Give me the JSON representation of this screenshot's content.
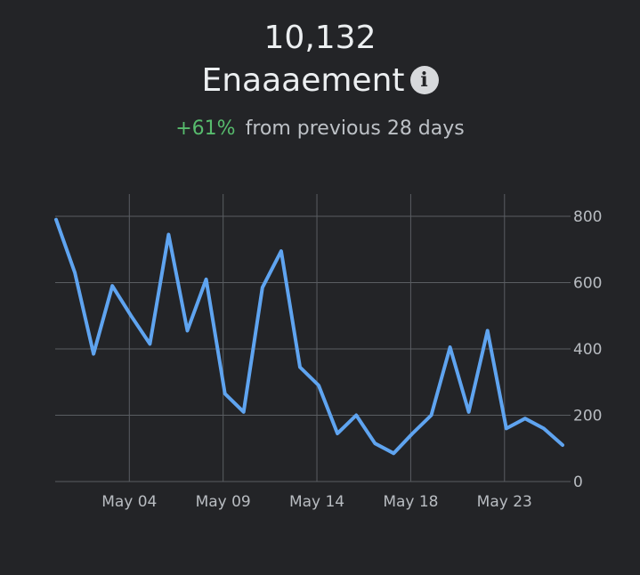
{
  "header": {
    "value": "10,132",
    "title": "Enaaaement",
    "info_icon": "info-icon",
    "change_pct": "+61%",
    "change_label": "from previous 28 days"
  },
  "colors": {
    "background": "#232427",
    "line": "#5fa4f0",
    "positive": "#57bb6d",
    "grid": "#5a5d62"
  },
  "chart_data": {
    "type": "line",
    "title": "",
    "xlabel": "",
    "ylabel": "",
    "ylim": [
      0,
      800
    ],
    "yticks": [
      0,
      200,
      400,
      600,
      800
    ],
    "ytick_labels": [
      "0",
      "200",
      "400",
      "600",
      "800"
    ],
    "x_tick_labels": [
      "May 04",
      "May 09",
      "May 14",
      "May 18",
      "May 23"
    ],
    "grid": true,
    "legend": "none",
    "series": [
      {
        "values": [
          790,
          630,
          385,
          590,
          500,
          415,
          745,
          455,
          610,
          265,
          210,
          585,
          695,
          345,
          290,
          145,
          200,
          115,
          85,
          145,
          200,
          405,
          210,
          455,
          160,
          190,
          160,
          110
        ]
      }
    ]
  }
}
